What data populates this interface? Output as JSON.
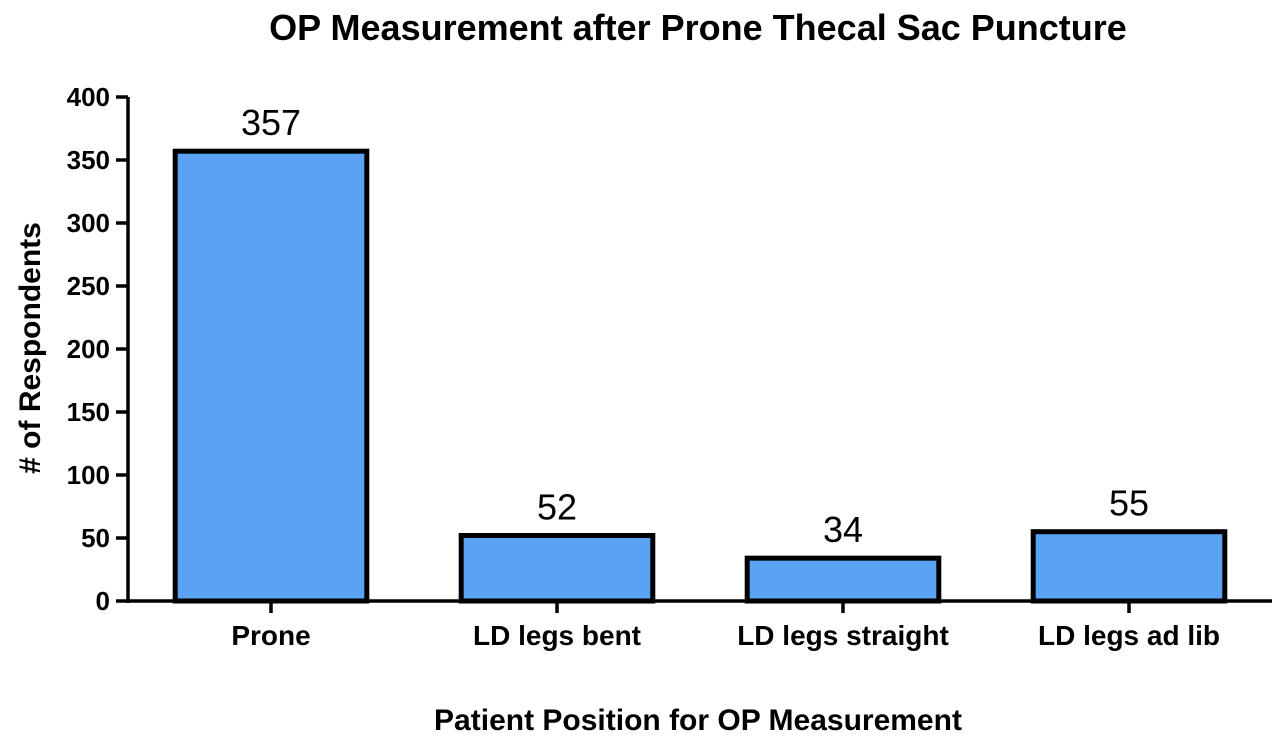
{
  "chart_data": {
    "type": "bar",
    "title": "OP Measurement after Prone Thecal Sac Puncture",
    "xlabel": "Patient Position for OP Measurement",
    "ylabel": "# of Respondents",
    "categories": [
      "Prone",
      "LD legs bent",
      "LD legs straight",
      "LD legs ad lib"
    ],
    "values": [
      357,
      52,
      34,
      55
    ],
    "data_labels": [
      "357",
      "52",
      "34",
      "55"
    ],
    "ylim": [
      0,
      400
    ],
    "yticks": [
      0,
      50,
      100,
      150,
      200,
      250,
      300,
      350,
      400
    ],
    "grid": false,
    "bar_color": "#5aa2f4"
  }
}
